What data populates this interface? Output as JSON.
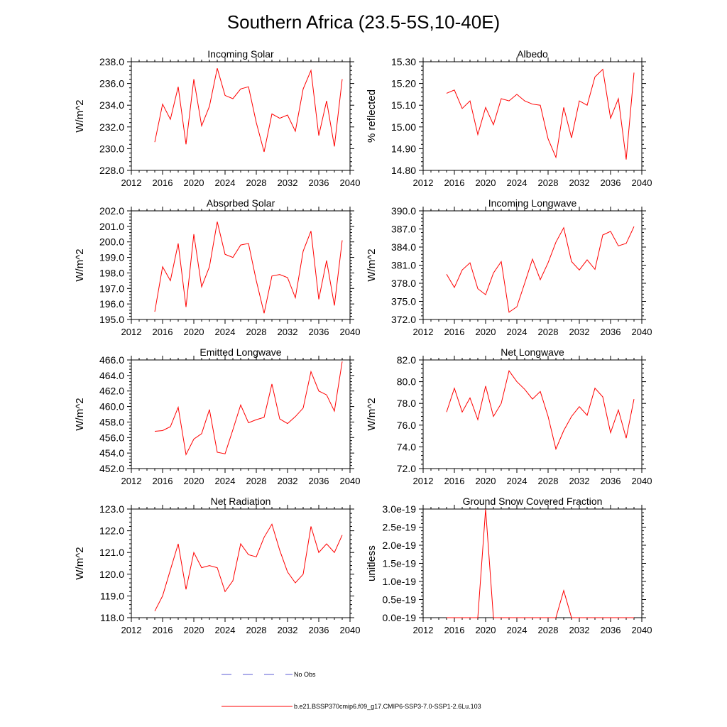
{
  "figure": {
    "title": "Southern Africa (23.5-5S,10-40E)",
    "series_color": "#ff0000",
    "obs_color": "#5b5bd6"
  },
  "legend": {
    "obs_label": "No Obs",
    "model_label": "b.e21.BSSP370cmip6.f09_g17.CMIP6-SSP3-7.0-SSP1-2.6Lu.103"
  },
  "chart_data": [
    {
      "type": "line",
      "title": "Incoming Solar",
      "ylabel": "W/m^2",
      "xlim": [
        2012,
        2040
      ],
      "ylim": [
        228,
        238
      ],
      "x_ticks": [
        "2012",
        "2016",
        "2020",
        "2024",
        "2028",
        "2032",
        "2036",
        "2040"
      ],
      "y_ticks": [
        "228.0",
        "230.0",
        "232.0",
        "234.0",
        "236.0",
        "238.0"
      ],
      "x": [
        2015,
        2016,
        2017,
        2018,
        2019,
        2020,
        2021,
        2022,
        2023,
        2024,
        2025,
        2026,
        2027,
        2028,
        2029,
        2030,
        2031,
        2032,
        2033,
        2034,
        2035,
        2036,
        2037,
        2038,
        2039
      ],
      "series": [
        {
          "name": "b.e21.BSSP370cmip6.f09_g17.CMIP6-SSP3-7.0-SSP1-2.6Lu.103",
          "values": [
            230.6,
            234.1,
            232.7,
            235.7,
            230.4,
            236.4,
            232.1,
            233.9,
            237.4,
            234.9,
            234.6,
            235.5,
            235.7,
            232.4,
            229.7,
            233.2,
            232.8,
            233.1,
            231.6,
            235.5,
            237.2,
            231.2,
            234.4,
            230.2,
            236.4
          ]
        }
      ]
    },
    {
      "type": "line",
      "title": "Albedo",
      "ylabel": "% reflected",
      "xlim": [
        2012,
        2040
      ],
      "ylim": [
        14.8,
        15.3
      ],
      "x_ticks": [
        "2012",
        "2016",
        "2020",
        "2024",
        "2028",
        "2032",
        "2036",
        "2040"
      ],
      "y_ticks": [
        "14.80",
        "14.90",
        "15.00",
        "15.10",
        "15.20",
        "15.30"
      ],
      "x": [
        2015,
        2016,
        2017,
        2018,
        2019,
        2020,
        2021,
        2022,
        2023,
        2024,
        2025,
        2026,
        2027,
        2028,
        2029,
        2030,
        2031,
        2032,
        2033,
        2034,
        2035,
        2036,
        2037,
        2038,
        2039
      ],
      "series": [
        {
          "name": "b.e21.BSSP370cmip6.f09_g17.CMIP6-SSP3-7.0-SSP1-2.6Lu.103",
          "values": [
            15.155,
            15.17,
            15.085,
            15.12,
            14.965,
            15.09,
            15.01,
            15.13,
            15.12,
            15.15,
            15.12,
            15.105,
            15.1,
            14.945,
            14.86,
            15.09,
            14.95,
            15.12,
            15.1,
            15.23,
            15.265,
            15.04,
            15.13,
            14.85,
            15.25
          ]
        }
      ]
    },
    {
      "type": "line",
      "title": "Absorbed Solar",
      "ylabel": "W/m^2",
      "xlim": [
        2012,
        2040
      ],
      "ylim": [
        195,
        202
      ],
      "x_ticks": [
        "2012",
        "2016",
        "2020",
        "2024",
        "2028",
        "2032",
        "2036",
        "2040"
      ],
      "y_ticks": [
        "195.0",
        "196.0",
        "197.0",
        "198.0",
        "199.0",
        "200.0",
        "201.0",
        "202.0"
      ],
      "x": [
        2015,
        2016,
        2017,
        2018,
        2019,
        2020,
        2021,
        2022,
        2023,
        2024,
        2025,
        2026,
        2027,
        2028,
        2029,
        2030,
        2031,
        2032,
        2033,
        2034,
        2035,
        2036,
        2037,
        2038,
        2039
      ],
      "series": [
        {
          "name": "b.e21.BSSP370cmip6.f09_g17.CMIP6-SSP3-7.0-SSP1-2.6Lu.103",
          "values": [
            195.5,
            198.4,
            197.5,
            199.9,
            195.8,
            200.5,
            197.1,
            198.4,
            201.3,
            199.2,
            199.0,
            199.8,
            199.9,
            197.5,
            195.4,
            197.8,
            197.9,
            197.7,
            196.4,
            199.4,
            200.7,
            196.3,
            198.8,
            195.9,
            200.1
          ]
        }
      ]
    },
    {
      "type": "line",
      "title": "Incoming Longwave",
      "ylabel": "W/m^2",
      "xlim": [
        2012,
        2040
      ],
      "ylim": [
        372,
        390
      ],
      "x_ticks": [
        "2012",
        "2016",
        "2020",
        "2024",
        "2028",
        "2032",
        "2036",
        "2040"
      ],
      "y_ticks": [
        "372.0",
        "375.0",
        "378.0",
        "381.0",
        "384.0",
        "387.0",
        "390.0"
      ],
      "x": [
        2015,
        2016,
        2017,
        2018,
        2019,
        2020,
        2021,
        2022,
        2023,
        2024,
        2025,
        2026,
        2027,
        2028,
        2029,
        2030,
        2031,
        2032,
        2033,
        2034,
        2035,
        2036,
        2037,
        2038,
        2039
      ],
      "series": [
        {
          "name": "b.e21.BSSP370cmip6.f09_g17.CMIP6-SSP3-7.0-SSP1-2.6Lu.103",
          "values": [
            379.5,
            377.3,
            380.2,
            381.4,
            377.1,
            376.1,
            379.7,
            381.6,
            373.2,
            374.1,
            378.0,
            382.0,
            378.6,
            381.4,
            384.8,
            387.2,
            381.6,
            380.2,
            381.9,
            380.3,
            386.0,
            386.6,
            384.2,
            384.6,
            387.4
          ]
        }
      ]
    },
    {
      "type": "line",
      "title": "Emitted Longwave",
      "ylabel": "W/m^2",
      "xlim": [
        2012,
        2040
      ],
      "ylim": [
        452,
        466
      ],
      "x_ticks": [
        "2012",
        "2016",
        "2020",
        "2024",
        "2028",
        "2032",
        "2036",
        "2040"
      ],
      "y_ticks": [
        "452.0",
        "454.0",
        "456.0",
        "458.0",
        "460.0",
        "462.0",
        "464.0",
        "466.0"
      ],
      "x": [
        2015,
        2016,
        2017,
        2018,
        2019,
        2020,
        2021,
        2022,
        2023,
        2024,
        2025,
        2026,
        2027,
        2028,
        2029,
        2030,
        2031,
        2032,
        2033,
        2034,
        2035,
        2036,
        2037,
        2038,
        2039
      ],
      "series": [
        {
          "name": "b.e21.BSSP370cmip6.f09_g17.CMIP6-SSP3-7.0-SSP1-2.6Lu.103",
          "values": [
            456.8,
            456.9,
            457.4,
            459.9,
            453.8,
            455.8,
            456.5,
            459.6,
            454.1,
            453.9,
            457.0,
            460.2,
            457.9,
            458.3,
            458.6,
            462.9,
            458.4,
            457.8,
            458.7,
            459.8,
            464.5,
            462.0,
            461.5,
            459.4,
            465.8
          ]
        }
      ]
    },
    {
      "type": "line",
      "title": "Net Longwave",
      "ylabel": "W/m^2",
      "xlim": [
        2012,
        2040
      ],
      "ylim": [
        72,
        82
      ],
      "x_ticks": [
        "2012",
        "2016",
        "2020",
        "2024",
        "2028",
        "2032",
        "2036",
        "2040"
      ],
      "y_ticks": [
        "72.0",
        "74.0",
        "76.0",
        "78.0",
        "80.0",
        "82.0"
      ],
      "x": [
        2015,
        2016,
        2017,
        2018,
        2019,
        2020,
        2021,
        2022,
        2023,
        2024,
        2025,
        2026,
        2027,
        2028,
        2029,
        2030,
        2031,
        2032,
        2033,
        2034,
        2035,
        2036,
        2037,
        2038,
        2039
      ],
      "series": [
        {
          "name": "b.e21.BSSP370cmip6.f09_g17.CMIP6-SSP3-7.0-SSP1-2.6Lu.103",
          "values": [
            77.2,
            79.4,
            77.2,
            78.5,
            76.5,
            79.6,
            76.8,
            78.0,
            81.0,
            80.0,
            79.3,
            78.4,
            79.1,
            76.8,
            73.8,
            75.5,
            76.8,
            77.7,
            76.9,
            79.4,
            78.6,
            75.3,
            77.4,
            74.8,
            78.4
          ]
        }
      ]
    },
    {
      "type": "line",
      "title": "Net Radiation",
      "ylabel": "W/m^2",
      "xlim": [
        2012,
        2040
      ],
      "ylim": [
        118,
        123
      ],
      "x_ticks": [
        "2012",
        "2016",
        "2020",
        "2024",
        "2028",
        "2032",
        "2036",
        "2040"
      ],
      "y_ticks": [
        "118.0",
        "119.0",
        "120.0",
        "121.0",
        "122.0",
        "123.0"
      ],
      "x": [
        2015,
        2016,
        2017,
        2018,
        2019,
        2020,
        2021,
        2022,
        2023,
        2024,
        2025,
        2026,
        2027,
        2028,
        2029,
        2030,
        2031,
        2032,
        2033,
        2034,
        2035,
        2036,
        2037,
        2038,
        2039
      ],
      "series": [
        {
          "name": "b.e21.BSSP370cmip6.f09_g17.CMIP6-SSP3-7.0-SSP1-2.6Lu.103",
          "values": [
            118.3,
            119.0,
            120.2,
            121.4,
            119.3,
            121.0,
            120.3,
            120.4,
            120.3,
            119.2,
            119.7,
            121.4,
            120.9,
            120.8,
            121.7,
            122.3,
            121.1,
            120.1,
            119.6,
            120.0,
            122.2,
            121.0,
            121.4,
            121.0,
            121.8
          ]
        }
      ]
    },
    {
      "type": "line",
      "title": "Ground Snow Covered Fraction",
      "ylabel": "unitless",
      "xlim": [
        2012,
        2040
      ],
      "ylim": [
        0,
        3e-19
      ],
      "x_ticks": [
        "2012",
        "2016",
        "2020",
        "2024",
        "2028",
        "2032",
        "2036",
        "2040"
      ],
      "y_ticks": [
        "0.0e-19",
        "0.5e-19",
        "1.0e-19",
        "1.5e-19",
        "2.0e-19",
        "2.5e-19",
        "3.0e-19"
      ],
      "x": [
        2015,
        2016,
        2017,
        2018,
        2019,
        2020,
        2021,
        2022,
        2023,
        2024,
        2025,
        2026,
        2027,
        2028,
        2029,
        2030,
        2031,
        2032,
        2033,
        2034,
        2035,
        2036,
        2037,
        2038,
        2039
      ],
      "series": [
        {
          "name": "b.e21.BSSP370cmip6.f09_g17.CMIP6-SSP3-7.0-SSP1-2.6Lu.103",
          "values": [
            0,
            0,
            0,
            0,
            0,
            3e-19,
            0,
            0,
            0,
            0,
            0,
            0,
            0,
            0,
            0,
            7.5e-20,
            0,
            0,
            0,
            0,
            0,
            0,
            0,
            0,
            0
          ]
        }
      ]
    }
  ]
}
